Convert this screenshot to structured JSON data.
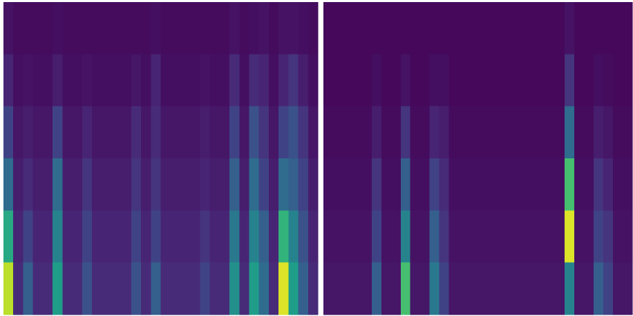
{
  "chart_data": [
    {
      "type": "heatmap",
      "colormap": "viridis",
      "zlim": [
        0,
        1
      ],
      "z": [
        [
          0.05,
          0.03,
          0.03,
          0.03,
          0.03,
          0.04,
          0.03,
          0.03,
          0.03,
          0.03,
          0.03,
          0.03,
          0.03,
          0.03,
          0.03,
          0.04,
          0.03,
          0.03,
          0.03,
          0.03,
          0.03,
          0.03,
          0.03,
          0.05,
          0.03,
          0.04,
          0.05,
          0.03,
          0.05,
          0.05,
          0.04,
          0.03
        ],
        [
          0.1,
          0.04,
          0.05,
          0.04,
          0.04,
          0.08,
          0.04,
          0.04,
          0.05,
          0.04,
          0.04,
          0.04,
          0.04,
          0.06,
          0.04,
          0.1,
          0.04,
          0.04,
          0.04,
          0.04,
          0.05,
          0.04,
          0.04,
          0.12,
          0.04,
          0.12,
          0.1,
          0.04,
          0.1,
          0.15,
          0.08,
          0.04
        ],
        [
          0.2,
          0.06,
          0.08,
          0.06,
          0.06,
          0.2,
          0.06,
          0.06,
          0.1,
          0.06,
          0.06,
          0.06,
          0.06,
          0.12,
          0.06,
          0.12,
          0.06,
          0.06,
          0.06,
          0.06,
          0.08,
          0.06,
          0.06,
          0.2,
          0.06,
          0.25,
          0.15,
          0.06,
          0.2,
          0.25,
          0.15,
          0.06
        ],
        [
          0.35,
          0.08,
          0.12,
          0.08,
          0.08,
          0.35,
          0.08,
          0.08,
          0.15,
          0.08,
          0.08,
          0.08,
          0.08,
          0.15,
          0.08,
          0.15,
          0.08,
          0.08,
          0.08,
          0.08,
          0.1,
          0.08,
          0.08,
          0.3,
          0.08,
          0.35,
          0.2,
          0.08,
          0.35,
          0.3,
          0.2,
          0.08
        ],
        [
          0.6,
          0.1,
          0.2,
          0.1,
          0.1,
          0.45,
          0.1,
          0.1,
          0.2,
          0.1,
          0.1,
          0.1,
          0.1,
          0.2,
          0.1,
          0.2,
          0.1,
          0.1,
          0.1,
          0.1,
          0.15,
          0.1,
          0.1,
          0.4,
          0.1,
          0.45,
          0.3,
          0.1,
          0.65,
          0.45,
          0.25,
          0.1
        ],
        [
          0.9,
          0.12,
          0.3,
          0.12,
          0.12,
          0.55,
          0.12,
          0.12,
          0.25,
          0.12,
          0.12,
          0.12,
          0.12,
          0.25,
          0.12,
          0.3,
          0.12,
          0.12,
          0.12,
          0.12,
          0.2,
          0.12,
          0.12,
          0.5,
          0.12,
          0.55,
          0.35,
          0.12,
          0.95,
          0.55,
          0.3,
          0.12
        ]
      ]
    },
    {
      "type": "heatmap",
      "colormap": "viridis",
      "zlim": [
        0,
        1
      ],
      "z": [
        [
          0.02,
          0.02,
          0.02,
          0.02,
          0.02,
          0.02,
          0.02,
          0.02,
          0.02,
          0.02,
          0.02,
          0.02,
          0.02,
          0.02,
          0.02,
          0.02,
          0.02,
          0.02,
          0.02,
          0.02,
          0.02,
          0.02,
          0.02,
          0.02,
          0.02,
          0.05,
          0.02,
          0.02,
          0.02,
          0.02,
          0.02,
          0.02
        ],
        [
          0.02,
          0.02,
          0.02,
          0.02,
          0.02,
          0.04,
          0.02,
          0.02,
          0.05,
          0.02,
          0.02,
          0.04,
          0.04,
          0.02,
          0.02,
          0.02,
          0.02,
          0.02,
          0.02,
          0.02,
          0.02,
          0.02,
          0.02,
          0.02,
          0.02,
          0.15,
          0.02,
          0.02,
          0.04,
          0.03,
          0.02,
          0.02
        ],
        [
          0.03,
          0.03,
          0.03,
          0.03,
          0.03,
          0.08,
          0.03,
          0.03,
          0.15,
          0.03,
          0.03,
          0.1,
          0.08,
          0.03,
          0.03,
          0.03,
          0.03,
          0.03,
          0.03,
          0.03,
          0.03,
          0.03,
          0.03,
          0.03,
          0.03,
          0.35,
          0.03,
          0.03,
          0.08,
          0.06,
          0.03,
          0.03
        ],
        [
          0.04,
          0.04,
          0.04,
          0.04,
          0.04,
          0.15,
          0.04,
          0.04,
          0.3,
          0.04,
          0.04,
          0.2,
          0.12,
          0.04,
          0.04,
          0.04,
          0.04,
          0.04,
          0.04,
          0.04,
          0.04,
          0.04,
          0.04,
          0.04,
          0.04,
          0.7,
          0.04,
          0.04,
          0.15,
          0.1,
          0.04,
          0.04
        ],
        [
          0.05,
          0.05,
          0.05,
          0.05,
          0.05,
          0.2,
          0.05,
          0.05,
          0.45,
          0.05,
          0.05,
          0.3,
          0.15,
          0.05,
          0.05,
          0.05,
          0.05,
          0.05,
          0.05,
          0.05,
          0.05,
          0.05,
          0.05,
          0.05,
          0.05,
          0.95,
          0.05,
          0.05,
          0.2,
          0.15,
          0.05,
          0.05
        ],
        [
          0.06,
          0.06,
          0.06,
          0.06,
          0.06,
          0.3,
          0.06,
          0.06,
          0.7,
          0.06,
          0.06,
          0.4,
          0.2,
          0.06,
          0.06,
          0.06,
          0.06,
          0.06,
          0.06,
          0.06,
          0.06,
          0.06,
          0.06,
          0.06,
          0.06,
          0.45,
          0.06,
          0.06,
          0.3,
          0.2,
          0.06,
          0.06
        ]
      ]
    }
  ]
}
